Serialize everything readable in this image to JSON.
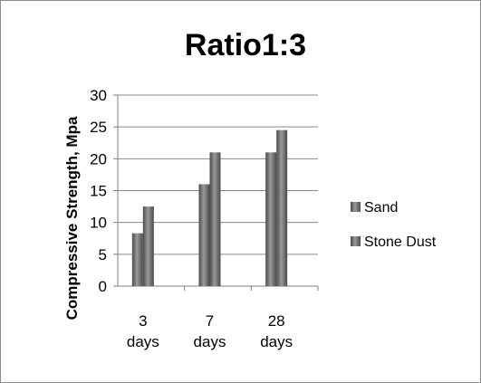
{
  "chart_data": {
    "type": "bar",
    "title": "Ratio1:3",
    "ylabel": "Compressive Strength, Mpa",
    "xlabel": "",
    "categories": [
      [
        "3",
        "days"
      ],
      [
        "7",
        "days"
      ],
      [
        "28",
        "days"
      ]
    ],
    "series": [
      {
        "name": "Sand",
        "values": [
          8.3,
          16.0,
          21.0
        ]
      },
      {
        "name": "Stone Dust",
        "values": [
          12.5,
          21.0,
          24.5
        ]
      }
    ],
    "ylim": [
      0,
      30
    ],
    "yticks": [
      0,
      5,
      10,
      15,
      20,
      25,
      30
    ],
    "grid": true,
    "legend": "right",
    "colors": {
      "series": [
        "#6e6e6e",
        "#6e6e6e"
      ],
      "bar_highlight": "#9a9a9a",
      "bar_shadow": "#4a4a4a",
      "grid": "#8a8a8a",
      "axis": "#7f7f7f"
    }
  }
}
